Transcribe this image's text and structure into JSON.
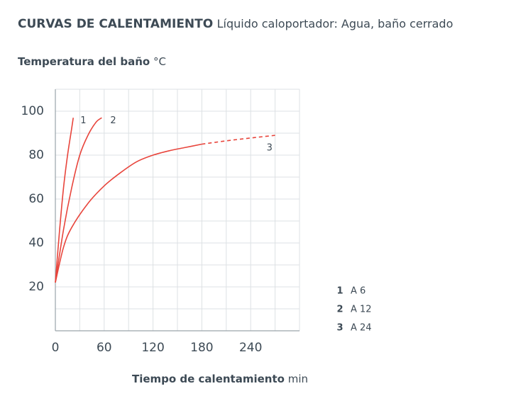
{
  "chart_data": {
    "type": "line",
    "title": "CURVAS DE CALENTAMIENTO",
    "subtitle": "Líquido caloportador: Agua, baño cerrado",
    "y_label": "Temperatura del baño",
    "y_unit": "°C",
    "x_label": "Tiempo de calentamiento",
    "x_unit": "min",
    "xlim": [
      0,
      300
    ],
    "ylim": [
      0,
      110
    ],
    "xticks": [
      0,
      60,
      120,
      180,
      240
    ],
    "yticks": [
      20,
      40,
      60,
      80,
      100
    ],
    "xgrid": [
      30,
      60,
      90,
      120,
      150,
      180,
      210,
      240,
      270,
      300
    ],
    "ygrid": [
      10,
      20,
      30,
      40,
      50,
      60,
      70,
      80,
      90,
      100,
      110
    ],
    "series": [
      {
        "name": "A 6",
        "label": "1",
        "color": "#e8453c",
        "x": [
          0,
          5,
          10,
          15,
          20,
          22
        ],
        "values": [
          22,
          45,
          65,
          80,
          92,
          97
        ]
      },
      {
        "name": "A 12",
        "label": "2",
        "color": "#e8453c",
        "x": [
          0,
          10,
          20,
          30,
          40,
          50,
          57
        ],
        "values": [
          22,
          46,
          65,
          80,
          89,
          95,
          97
        ]
      },
      {
        "name": "A 24",
        "label": "3",
        "color": "#e8453c",
        "x": [
          0,
          10,
          20,
          40,
          60,
          80,
          100,
          120,
          140,
          160,
          180
        ],
        "values": [
          22,
          38,
          47,
          58,
          66,
          72,
          77,
          80,
          82,
          83.5,
          85
        ],
        "dashed_x": [
          180,
          210,
          240,
          270
        ],
        "dashed_values": [
          85,
          86.5,
          87.8,
          89
        ]
      }
    ]
  }
}
